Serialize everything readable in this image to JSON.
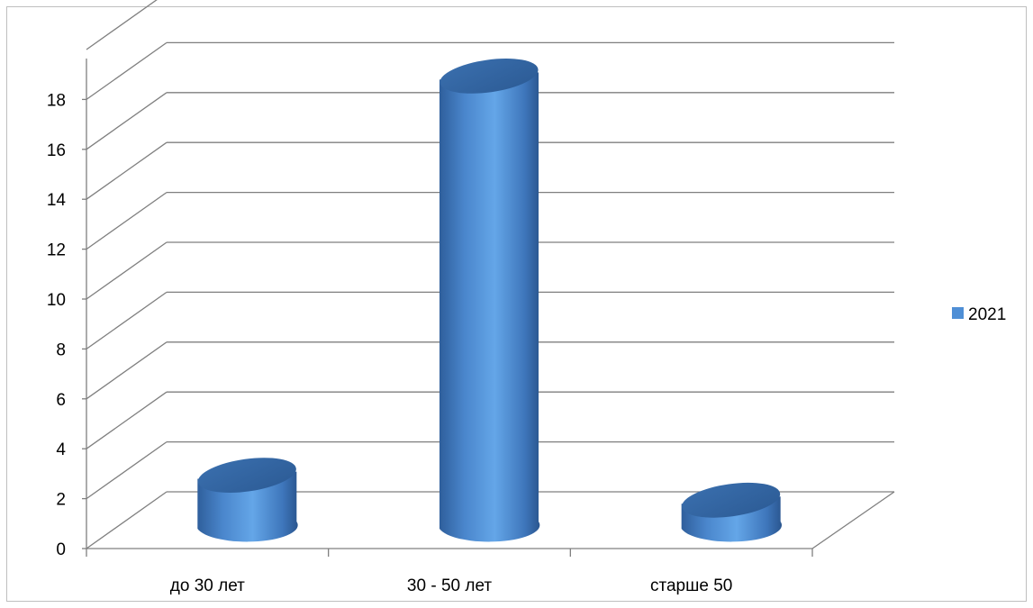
{
  "chart_data": {
    "type": "bar",
    "style": "3d-cylinder",
    "categories": [
      "до 30 лет",
      "30 - 50 лет",
      "старше 50"
    ],
    "series": [
      {
        "name": "2021",
        "values": [
          2,
          18,
          1
        ],
        "color": "#4f8fd6"
      }
    ],
    "title": "",
    "xlabel": "",
    "ylabel": "",
    "ylim": [
      0,
      20
    ],
    "yticks": [
      0,
      2,
      4,
      6,
      8,
      10,
      12,
      14,
      16,
      18
    ],
    "grid": true,
    "legend": "right"
  }
}
